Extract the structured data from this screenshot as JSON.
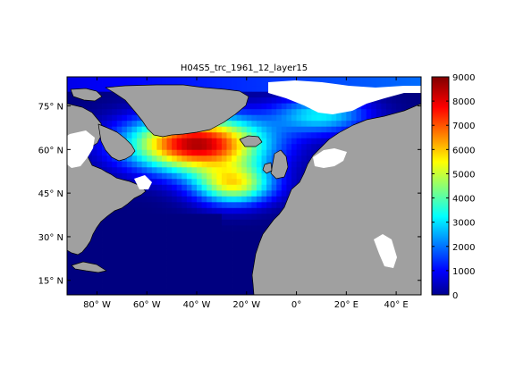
{
  "chart_data": {
    "type": "heatmap",
    "title": "H04S5_trc_1961_12_layer15",
    "xlabel": "",
    "ylabel": "",
    "x_ticks": [
      "80° W",
      "60° W",
      "40° W",
      "20° W",
      "0°",
      "20° E",
      "40° E"
    ],
    "x_tick_values": [
      -80,
      -60,
      -40,
      -20,
      0,
      20,
      40
    ],
    "y_ticks": [
      "15° N",
      "30° N",
      "45° N",
      "60° N",
      "75° N"
    ],
    "y_tick_values": [
      15,
      30,
      45,
      60,
      75
    ],
    "xlim": [
      -92,
      50
    ],
    "ylim": [
      10,
      85
    ],
    "colorbar": {
      "ticks": [
        "0",
        "1000",
        "2000",
        "3000",
        "4000",
        "5000",
        "6000",
        "7000",
        "8000",
        "9000"
      ],
      "tick_values": [
        0,
        1000,
        2000,
        3000,
        4000,
        5000,
        6000,
        7000,
        8000,
        9000
      ],
      "range": [
        0,
        9000
      ],
      "colormap": "jet"
    },
    "colors": {
      "land": "#a0a0a0",
      "no_data": "#ffffff",
      "coastline": "#000000"
    }
  }
}
